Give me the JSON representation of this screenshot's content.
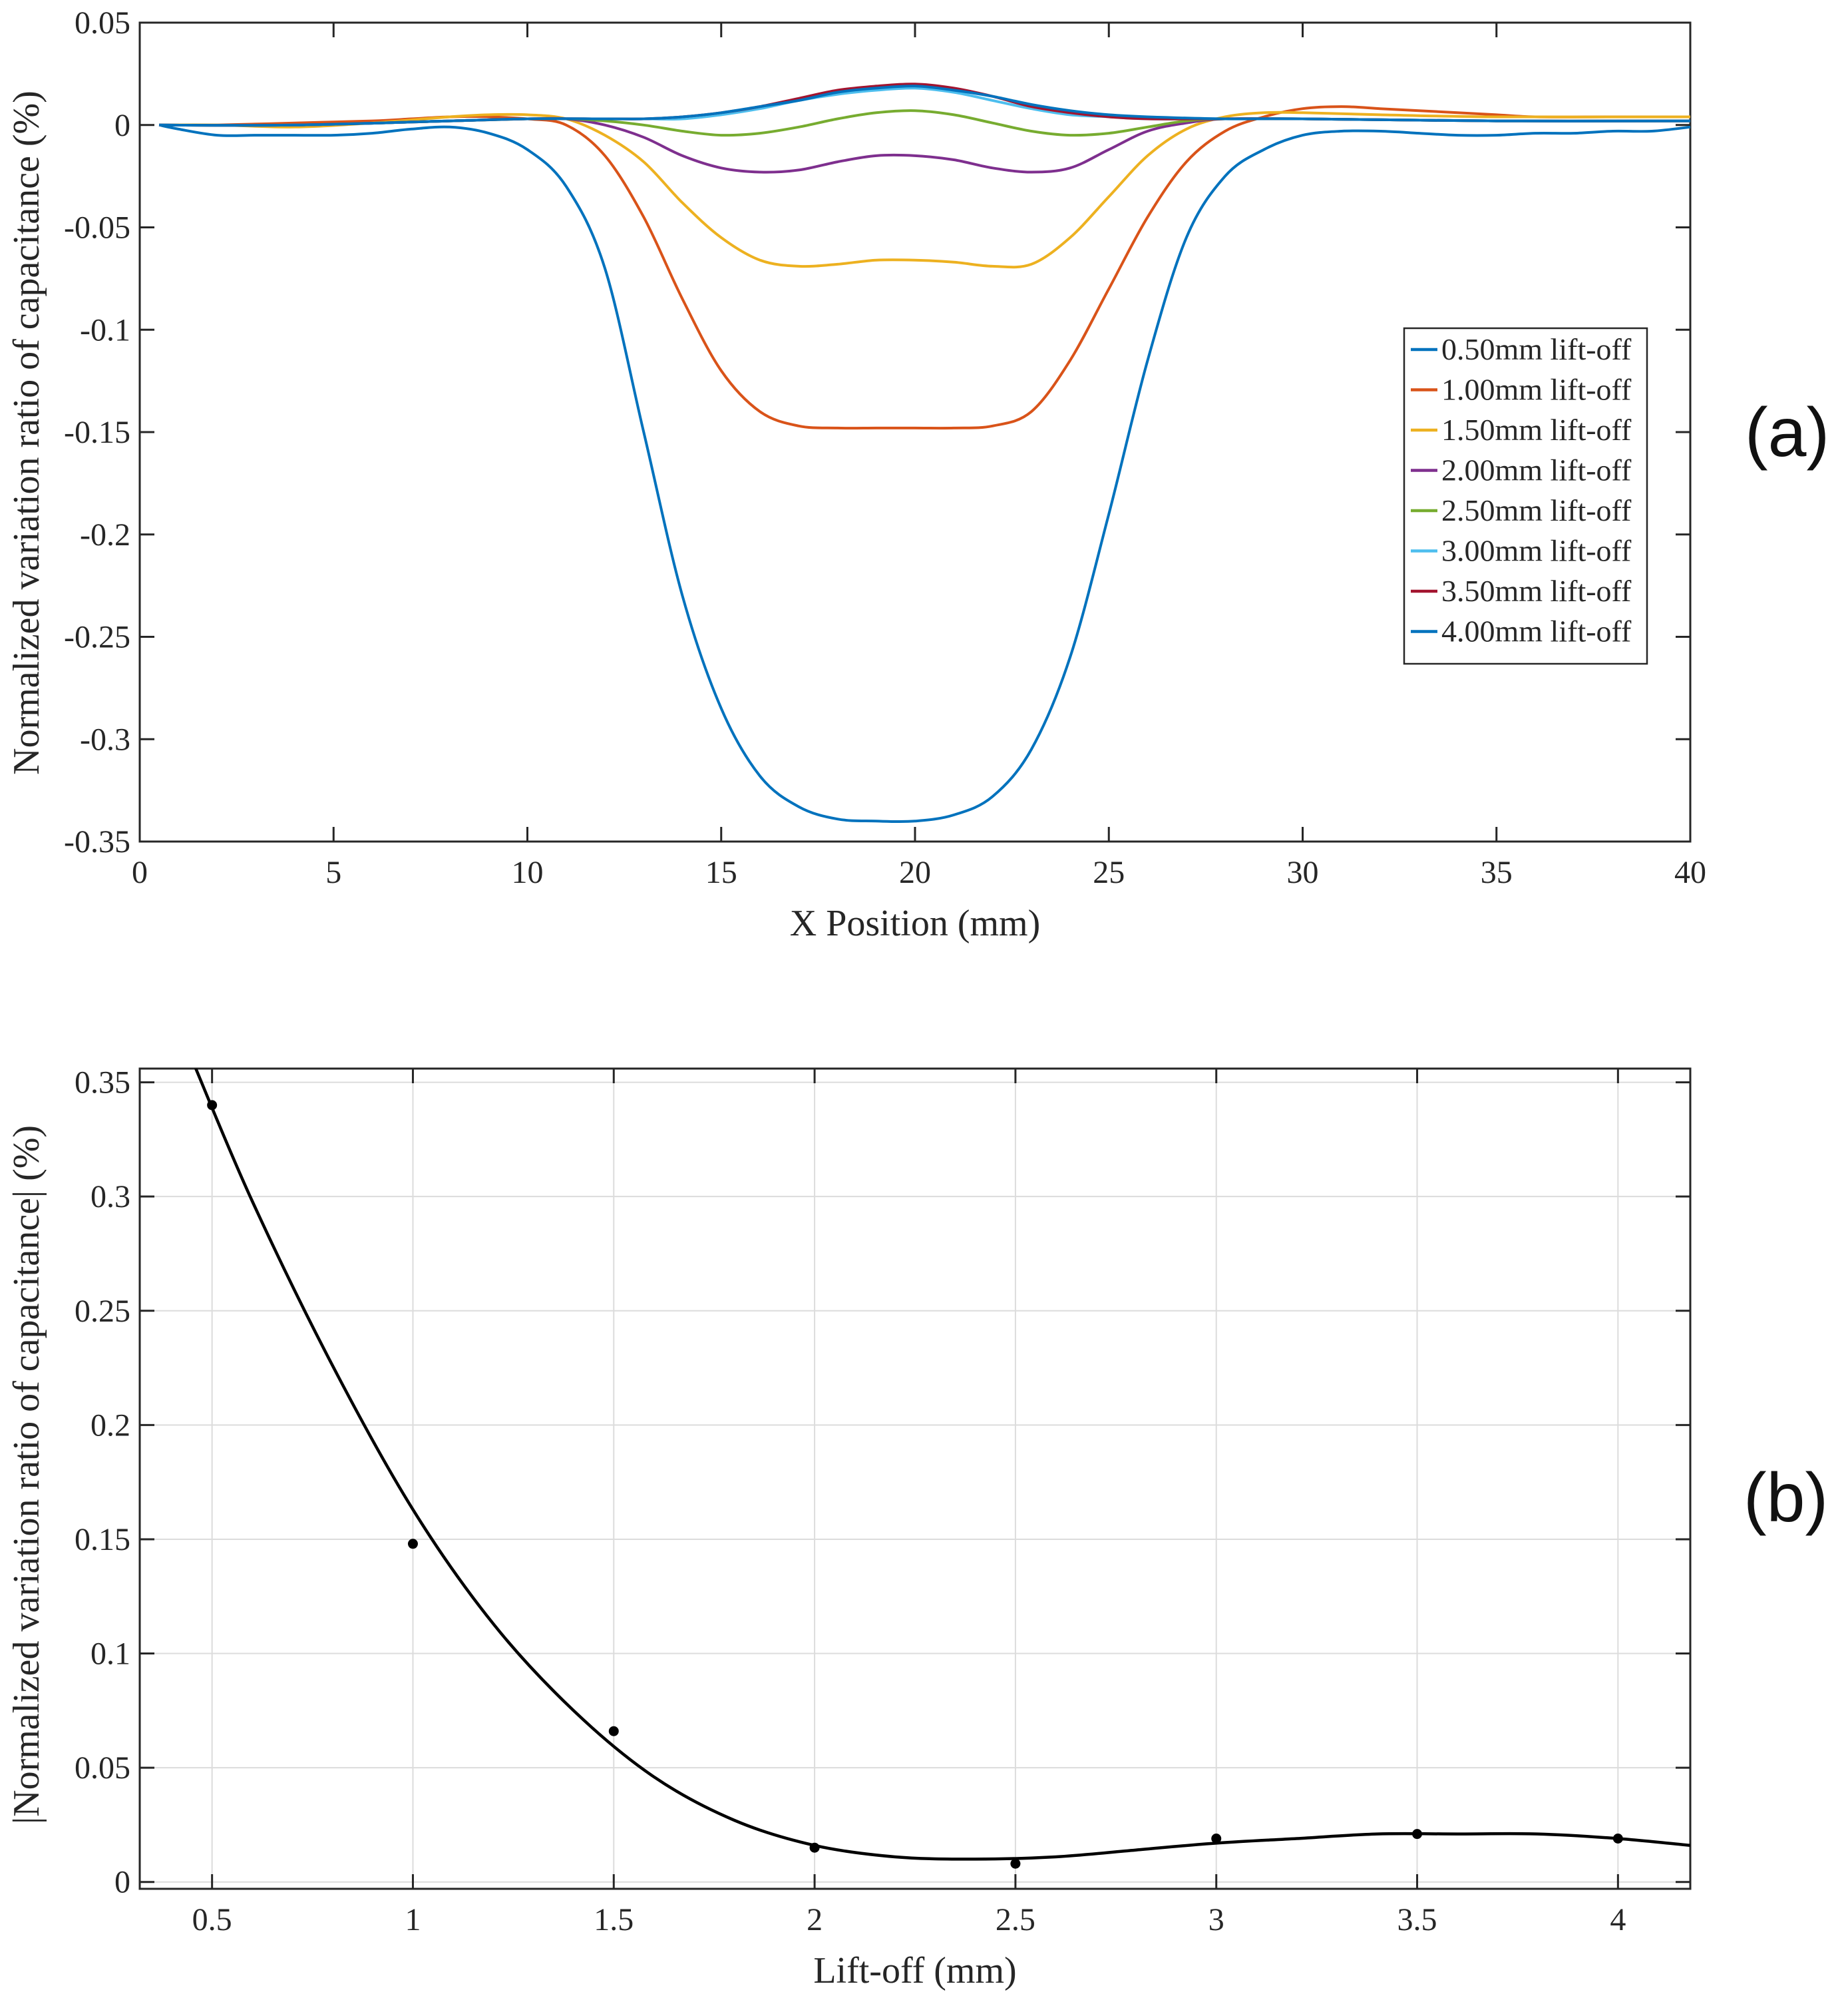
{
  "panels": {
    "a": {
      "label": "(a)"
    },
    "b": {
      "label": "(b)"
    }
  },
  "chart_data": [
    {
      "id": "a",
      "type": "line",
      "title": "",
      "xlabel": "X Position (mm)",
      "ylabel": "Normalized variation ratio of capacitance (%)",
      "xlim": [
        0,
        40
      ],
      "ylim": [
        -0.35,
        0.05
      ],
      "xticks": [
        0,
        5,
        10,
        15,
        20,
        25,
        30,
        35,
        40
      ],
      "xtick_labels": [
        "0",
        "5",
        "10",
        "15",
        "20",
        "25",
        "30",
        "35",
        "40"
      ],
      "yticks": [
        0.05,
        0,
        -0.05,
        -0.1,
        -0.15,
        -0.2,
        -0.25,
        -0.3,
        -0.35
      ],
      "ytick_labels": [
        "0.05",
        "0",
        "-0.05",
        "-0.1",
        "-0.15",
        "-0.2",
        "-0.25",
        "-0.3",
        "-0.35"
      ],
      "grid": false,
      "legend_position": "right",
      "series": [
        {
          "name": "0.50mm lift-off",
          "color": "#0072BD",
          "x": [
            0.5,
            1,
            2,
            3,
            4,
            5,
            6,
            7,
            8,
            9,
            10,
            11,
            12,
            13,
            14,
            15,
            16,
            17,
            18,
            19,
            20,
            21,
            22,
            23,
            24,
            25,
            26,
            27,
            28,
            29,
            30,
            31,
            32,
            33,
            34,
            35,
            36,
            37,
            38,
            39,
            40
          ],
          "y": [
            0,
            -0.002,
            -0.005,
            -0.005,
            -0.005,
            -0.005,
            -0.004,
            -0.002,
            -0.001,
            -0.004,
            -0.012,
            -0.03,
            -0.07,
            -0.15,
            -0.23,
            -0.285,
            -0.318,
            -0.333,
            -0.339,
            -0.34,
            -0.34,
            -0.337,
            -0.328,
            -0.305,
            -0.26,
            -0.19,
            -0.115,
            -0.055,
            -0.025,
            -0.012,
            -0.005,
            -0.003,
            -0.003,
            -0.004,
            -0.005,
            -0.005,
            -0.004,
            -0.004,
            -0.003,
            -0.003,
            -0.001
          ]
        },
        {
          "name": "1.00mm lift-off",
          "color": "#D95319",
          "x": [
            0.5,
            2,
            4,
            6,
            7,
            8,
            9,
            10,
            11,
            12,
            13,
            14,
            15,
            16,
            17,
            18,
            19,
            20,
            21,
            22,
            23,
            24,
            25,
            26,
            27,
            28,
            29,
            30,
            31,
            32,
            33,
            34,
            35,
            36,
            38,
            40
          ],
          "y": [
            0,
            0,
            0.001,
            0.002,
            0.003,
            0.004,
            0.004,
            0.003,
            0,
            -0.015,
            -0.045,
            -0.085,
            -0.12,
            -0.14,
            -0.147,
            -0.148,
            -0.148,
            -0.148,
            -0.148,
            -0.147,
            -0.14,
            -0.115,
            -0.08,
            -0.045,
            -0.018,
            -0.003,
            0.004,
            0.008,
            0.009,
            0.008,
            0.007,
            0.006,
            0.005,
            0.004,
            0.004,
            0.004
          ]
        },
        {
          "name": "1.50mm lift-off",
          "color": "#EDB120",
          "x": [
            0.5,
            2,
            4,
            6,
            8,
            9,
            10,
            11,
            12,
            13,
            14,
            15,
            16,
            17,
            18,
            19,
            20,
            21,
            22,
            23,
            24,
            25,
            26,
            27,
            28,
            29,
            30,
            32,
            35,
            40
          ],
          "y": [
            0,
            0,
            -0.001,
            0.001,
            0.004,
            0.005,
            0.005,
            0.003,
            -0.005,
            -0.018,
            -0.038,
            -0.055,
            -0.066,
            -0.069,
            -0.068,
            -0.066,
            -0.066,
            -0.067,
            -0.069,
            -0.068,
            -0.055,
            -0.035,
            -0.015,
            -0.002,
            0.004,
            0.006,
            0.006,
            0.005,
            0.004,
            0.004
          ]
        },
        {
          "name": "2.00mm lift-off",
          "color": "#7E2F8E",
          "x": [
            0.5,
            4,
            8,
            10,
            11,
            12,
            13,
            14,
            15,
            16,
            17,
            18,
            19,
            20,
            21,
            22,
            23,
            24,
            25,
            26,
            27,
            28,
            30,
            35,
            40
          ],
          "y": [
            0,
            0,
            0.002,
            0.003,
            0.003,
            0,
            -0.006,
            -0.015,
            -0.021,
            -0.023,
            -0.022,
            -0.018,
            -0.015,
            -0.015,
            -0.017,
            -0.021,
            -0.023,
            -0.021,
            -0.012,
            -0.003,
            0.001,
            0.003,
            0.003,
            0.002,
            0.002
          ]
        },
        {
          "name": "2.50mm lift-off",
          "color": "#77AC30",
          "x": [
            0.5,
            4,
            8,
            10,
            11,
            12,
            13,
            14,
            15,
            16,
            17,
            18,
            19,
            20,
            21,
            22,
            23,
            24,
            25,
            26,
            27,
            28,
            30,
            35,
            40
          ],
          "y": [
            0,
            0,
            0.002,
            0.003,
            0.003,
            0.002,
            0,
            -0.003,
            -0.005,
            -0.004,
            -0.001,
            0.003,
            0.006,
            0.007,
            0.005,
            0.001,
            -0.003,
            -0.005,
            -0.004,
            -0.001,
            0.002,
            0.003,
            0.003,
            0.002,
            0.002
          ]
        },
        {
          "name": "3.00mm lift-off",
          "color": "#4DBEEE",
          "x": [
            0.5,
            4,
            8,
            10,
            12,
            13,
            14,
            15,
            16,
            17,
            18,
            19,
            20,
            21,
            22,
            23,
            24,
            25,
            26,
            28,
            30,
            35,
            40
          ],
          "y": [
            0,
            0,
            0.002,
            0.003,
            0.003,
            0.003,
            0.003,
            0.005,
            0.008,
            0.012,
            0.015,
            0.017,
            0.018,
            0.016,
            0.012,
            0.008,
            0.005,
            0.004,
            0.003,
            0.003,
            0.003,
            0.002,
            0.002
          ]
        },
        {
          "name": "3.50mm lift-off",
          "color": "#A2142F",
          "x": [
            0.5,
            4,
            8,
            10,
            12,
            13,
            14,
            15,
            16,
            17,
            18,
            19,
            20,
            21,
            22,
            23,
            24,
            25,
            26,
            28,
            30,
            35,
            40
          ],
          "y": [
            0,
            0,
            0.002,
            0.003,
            0.003,
            0.003,
            0.004,
            0.006,
            0.009,
            0.013,
            0.017,
            0.019,
            0.02,
            0.018,
            0.014,
            0.009,
            0.006,
            0.004,
            0.003,
            0.003,
            0.003,
            0.002,
            0.002
          ]
        },
        {
          "name": "4.00mm lift-off",
          "color": "#0072BD",
          "x": [
            0.5,
            4,
            8,
            10,
            12,
            13,
            14,
            15,
            16,
            17,
            18,
            19,
            20,
            21,
            22,
            23,
            24,
            25,
            26,
            28,
            30,
            35,
            40
          ],
          "y": [
            0,
            0,
            0.002,
            0.003,
            0.003,
            0.003,
            0.004,
            0.006,
            0.009,
            0.012,
            0.016,
            0.018,
            0.019,
            0.017,
            0.014,
            0.01,
            0.007,
            0.005,
            0.004,
            0.003,
            0.003,
            0.002,
            0.002
          ]
        }
      ]
    },
    {
      "id": "b",
      "type": "scatter",
      "title": "",
      "xlabel": "Lift-off (mm)",
      "ylabel": "|Normalized variation ratio of capacitance| (%)",
      "xlim": [
        0.32,
        4.18
      ],
      "ylim": [
        -0.003,
        0.356
      ],
      "xticks": [
        0.5,
        1,
        1.5,
        2,
        2.5,
        3,
        3.5,
        4
      ],
      "xtick_labels": [
        "0.5",
        "1",
        "1.5",
        "2",
        "2.5",
        "3",
        "3.5",
        "4"
      ],
      "yticks": [
        0,
        0.05,
        0.1,
        0.15,
        0.2,
        0.25,
        0.3,
        0.35
      ],
      "ytick_labels": [
        "0",
        "0.05",
        "0.1",
        "0.15",
        "0.2",
        "0.25",
        "0.3",
        "0.35"
      ],
      "grid": true,
      "points": {
        "x": [
          0.5,
          1.0,
          1.5,
          2.0,
          2.5,
          3.0,
          3.5,
          4.0
        ],
        "y": [
          0.34,
          0.148,
          0.066,
          0.015,
          0.008,
          0.019,
          0.021,
          0.019
        ],
        "color": "#000000"
      },
      "fit_curve": {
        "name": "fit",
        "color": "#000000",
        "x": [
          0.45,
          0.6,
          0.8,
          1.0,
          1.2,
          1.4,
          1.6,
          1.8,
          2.0,
          2.2,
          2.4,
          2.6,
          2.8,
          3.0,
          3.2,
          3.4,
          3.6,
          3.8,
          4.0,
          4.18
        ],
        "y": [
          0.36,
          0.298,
          0.226,
          0.163,
          0.113,
          0.075,
          0.046,
          0.027,
          0.016,
          0.011,
          0.01,
          0.011,
          0.014,
          0.017,
          0.019,
          0.021,
          0.021,
          0.021,
          0.019,
          0.016
        ]
      }
    }
  ]
}
